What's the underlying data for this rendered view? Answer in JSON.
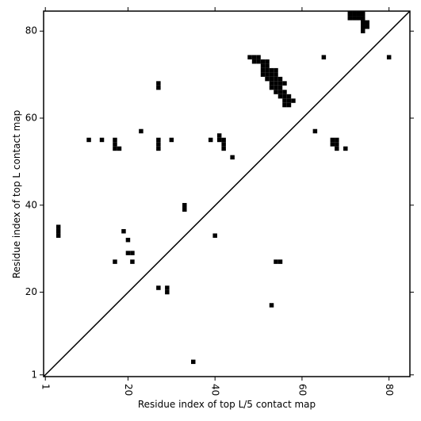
{
  "chart_data": {
    "type": "scatter",
    "xlabel": "Residue index of top L/5 contact map",
    "ylabel": "Residue index of top L contact map",
    "color": "#000000",
    "x": [
      4,
      4,
      4,
      11,
      14,
      17,
      17,
      17,
      18,
      23,
      27,
      27,
      27,
      27,
      27,
      30,
      33,
      33,
      39,
      41,
      41,
      42,
      42,
      42,
      44,
      19,
      20,
      20,
      21,
      17,
      21,
      27,
      29,
      29,
      35,
      40,
      53,
      54,
      55,
      63,
      65,
      67,
      67,
      68,
      68,
      68,
      70,
      80,
      71,
      72,
      73,
      74,
      71,
      72,
      73,
      74,
      74,
      75,
      74,
      75,
      74,
      48,
      49,
      50,
      49,
      50,
      51,
      52,
      51,
      52,
      51,
      52,
      53,
      54,
      51,
      52,
      53,
      54,
      52,
      53,
      54,
      55,
      53,
      54,
      55,
      56,
      53,
      54,
      55,
      54,
      55,
      56,
      55,
      56,
      57,
      56,
      57,
      58,
      56,
      57
    ],
    "y": [
      33,
      34,
      35,
      55,
      55,
      55,
      54,
      53,
      53,
      57,
      68,
      67,
      55,
      54,
      53,
      55,
      40,
      39,
      55,
      56,
      55,
      55,
      54,
      53,
      51,
      34,
      32,
      29,
      29,
      27,
      27,
      21,
      21,
      20,
      4,
      33,
      17,
      27,
      27,
      57,
      74,
      55,
      54,
      55,
      54,
      53,
      53,
      74,
      84,
      84,
      84,
      84,
      83,
      83,
      83,
      83,
      82,
      82,
      81,
      81,
      80,
      74,
      74,
      74,
      73,
      73,
      73,
      73,
      72,
      72,
      71,
      71,
      71,
      71,
      70,
      70,
      70,
      70,
      69,
      69,
      69,
      69,
      68,
      68,
      68,
      68,
      67,
      67,
      67,
      66,
      66,
      66,
      65,
      65,
      65,
      64,
      64,
      64,
      63,
      63
    ],
    "xlim": [
      0.6,
      84.8
    ],
    "ylim": [
      0.6,
      84.6
    ],
    "xticks": [
      1,
      20,
      40,
      60,
      80
    ],
    "yticks": [
      1,
      20,
      40,
      60,
      80
    ]
  }
}
